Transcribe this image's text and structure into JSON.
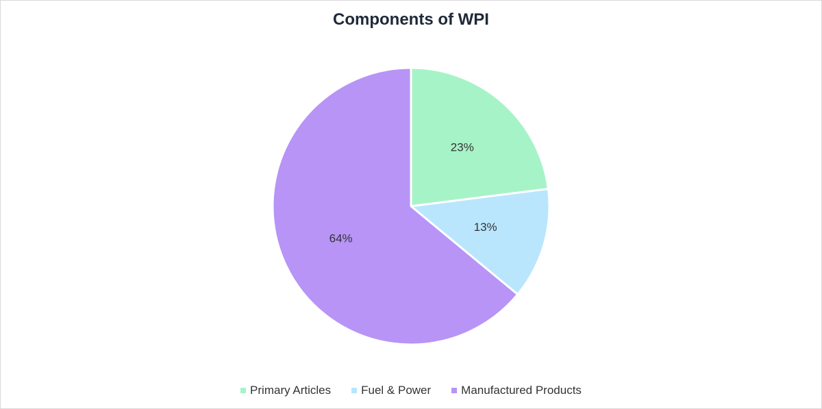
{
  "chart_data": {
    "type": "pie",
    "title": "Components of WPI",
    "categories": [
      "Primary Articles",
      "Fuel & Power",
      "Manufactured Products"
    ],
    "values": [
      23,
      13,
      64
    ],
    "value_labels": [
      "23%",
      "13%",
      "64%"
    ],
    "colors": [
      "#a7f3c8",
      "#bae6fd",
      "#b794f6"
    ],
    "legend_position": "bottom"
  }
}
